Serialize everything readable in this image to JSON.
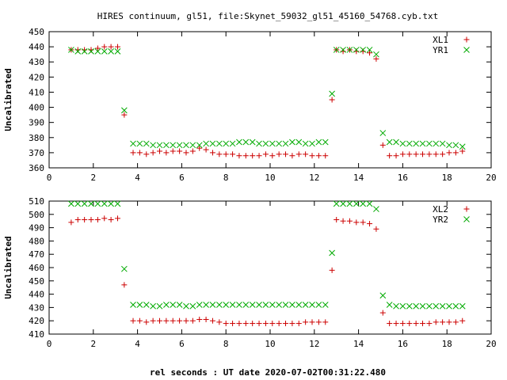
{
  "figure": {
    "title": "HIRES continuum, gl51, file:Skynet_59032_gl51_45160_54768.cyb.txt",
    "xlabel": "rel seconds : UT date 2020-07-02T00:31:22.480"
  },
  "chart_data": [
    {
      "type": "scatter",
      "ylabel": "Uncalibrated",
      "xlim": [
        0,
        20
      ],
      "ylim": [
        360,
        450
      ],
      "xticks": [
        "0",
        "2",
        "4",
        "6",
        "8",
        "10",
        "12",
        "14",
        "16",
        "18",
        "20"
      ],
      "yticks": [
        "360",
        "370",
        "380",
        "390",
        "400",
        "410",
        "420",
        "430",
        "440",
        "450"
      ],
      "grid": false,
      "legend_position": "top-right",
      "series": [
        {
          "name": "XL1",
          "marker": "plus",
          "color": "#cc0000",
          "x": [
            1.0,
            1.3,
            1.6,
            1.9,
            2.2,
            2.5,
            2.8,
            3.1,
            3.4,
            3.8,
            4.1,
            4.4,
            4.7,
            5.0,
            5.3,
            5.6,
            5.9,
            6.2,
            6.5,
            6.8,
            7.1,
            7.4,
            7.7,
            8.0,
            8.3,
            8.6,
            8.9,
            9.2,
            9.5,
            9.8,
            10.1,
            10.4,
            10.7,
            11.0,
            11.3,
            11.6,
            11.9,
            12.2,
            12.5,
            12.8,
            13.0,
            13.3,
            13.6,
            13.9,
            14.2,
            14.5,
            14.8,
            15.1,
            15.4,
            15.7,
            16.0,
            16.3,
            16.6,
            16.9,
            17.2,
            17.5,
            17.8,
            18.1,
            18.4,
            18.7
          ],
          "y": [
            438,
            438,
            438,
            438,
            439,
            440,
            440,
            440,
            395,
            370,
            370,
            369,
            370,
            371,
            370,
            371,
            371,
            370,
            371,
            373,
            372,
            370,
            369,
            369,
            369,
            368,
            368,
            368,
            368,
            369,
            368,
            369,
            369,
            368,
            369,
            369,
            368,
            368,
            368,
            405,
            438,
            437,
            438,
            437,
            437,
            436,
            432,
            375,
            368,
            368,
            369,
            369,
            369,
            369,
            369,
            369,
            369,
            370,
            370,
            371
          ]
        },
        {
          "name": "YR1",
          "marker": "cross",
          "color": "#00aa00",
          "x": [
            1.0,
            1.3,
            1.6,
            1.9,
            2.2,
            2.5,
            2.8,
            3.1,
            3.4,
            3.8,
            4.1,
            4.4,
            4.7,
            5.0,
            5.3,
            5.6,
            5.9,
            6.2,
            6.5,
            6.8,
            7.1,
            7.4,
            7.7,
            8.0,
            8.3,
            8.6,
            8.9,
            9.2,
            9.5,
            9.8,
            10.1,
            10.4,
            10.7,
            11.0,
            11.3,
            11.6,
            11.9,
            12.2,
            12.5,
            12.8,
            13.0,
            13.3,
            13.6,
            13.9,
            14.2,
            14.5,
            14.8,
            15.1,
            15.4,
            15.7,
            16.0,
            16.3,
            16.6,
            16.9,
            17.2,
            17.5,
            17.8,
            18.1,
            18.4,
            18.7
          ],
          "y": [
            438,
            437,
            437,
            437,
            437,
            437,
            437,
            437,
            398,
            376,
            376,
            376,
            375,
            375,
            375,
            375,
            375,
            375,
            375,
            375,
            376,
            376,
            376,
            376,
            376,
            377,
            377,
            377,
            376,
            376,
            376,
            376,
            376,
            377,
            377,
            376,
            376,
            377,
            377,
            409,
            438,
            438,
            438,
            438,
            438,
            438,
            435,
            383,
            377,
            377,
            376,
            376,
            376,
            376,
            376,
            376,
            376,
            375,
            375,
            374
          ]
        }
      ]
    },
    {
      "type": "scatter",
      "ylabel": "Uncalibrated",
      "xlim": [
        0,
        20
      ],
      "ylim": [
        410,
        510
      ],
      "xticks": [
        "0",
        "2",
        "4",
        "6",
        "8",
        "10",
        "12",
        "14",
        "16",
        "18",
        "20"
      ],
      "yticks": [
        "410",
        "420",
        "430",
        "440",
        "450",
        "460",
        "470",
        "480",
        "490",
        "500",
        "510"
      ],
      "grid": false,
      "legend_position": "top-right",
      "series": [
        {
          "name": "XL2",
          "marker": "plus",
          "color": "#cc0000",
          "x": [
            1.0,
            1.3,
            1.6,
            1.9,
            2.2,
            2.5,
            2.8,
            3.1,
            3.4,
            3.8,
            4.1,
            4.4,
            4.7,
            5.0,
            5.3,
            5.6,
            5.9,
            6.2,
            6.5,
            6.8,
            7.1,
            7.4,
            7.7,
            8.0,
            8.3,
            8.6,
            8.9,
            9.2,
            9.5,
            9.8,
            10.1,
            10.4,
            10.7,
            11.0,
            11.3,
            11.6,
            11.9,
            12.2,
            12.5,
            12.8,
            13.0,
            13.3,
            13.6,
            13.9,
            14.2,
            14.5,
            14.8,
            15.1,
            15.4,
            15.7,
            16.0,
            16.3,
            16.6,
            16.9,
            17.2,
            17.5,
            17.8,
            18.1,
            18.4,
            18.7
          ],
          "y": [
            494,
            496,
            496,
            496,
            496,
            497,
            496,
            497,
            447,
            420,
            420,
            419,
            420,
            420,
            420,
            420,
            420,
            420,
            420,
            421,
            421,
            420,
            419,
            418,
            418,
            418,
            418,
            418,
            418,
            418,
            418,
            418,
            418,
            418,
            418,
            419,
            419,
            419,
            419,
            458,
            496,
            495,
            495,
            494,
            494,
            493,
            489,
            426,
            418,
            418,
            418,
            418,
            418,
            418,
            418,
            419,
            419,
            419,
            419,
            420
          ]
        },
        {
          "name": "YR2",
          "marker": "cross",
          "color": "#00aa00",
          "x": [
            1.0,
            1.3,
            1.6,
            1.9,
            2.2,
            2.5,
            2.8,
            3.1,
            3.4,
            3.8,
            4.1,
            4.4,
            4.7,
            5.0,
            5.3,
            5.6,
            5.9,
            6.2,
            6.5,
            6.8,
            7.1,
            7.4,
            7.7,
            8.0,
            8.3,
            8.6,
            8.9,
            9.2,
            9.5,
            9.8,
            10.1,
            10.4,
            10.7,
            11.0,
            11.3,
            11.6,
            11.9,
            12.2,
            12.5,
            12.8,
            13.0,
            13.3,
            13.6,
            13.9,
            14.2,
            14.5,
            14.8,
            15.1,
            15.4,
            15.7,
            16.0,
            16.3,
            16.6,
            16.9,
            17.2,
            17.5,
            17.8,
            18.1,
            18.4,
            18.7
          ],
          "y": [
            508,
            508,
            508,
            508,
            508,
            508,
            508,
            508,
            459,
            432,
            432,
            432,
            431,
            431,
            432,
            432,
            432,
            431,
            431,
            432,
            432,
            432,
            432,
            432,
            432,
            432,
            432,
            432,
            432,
            432,
            432,
            432,
            432,
            432,
            432,
            432,
            432,
            432,
            432,
            471,
            508,
            508,
            508,
            508,
            508,
            508,
            504,
            439,
            432,
            431,
            431,
            431,
            431,
            431,
            431,
            431,
            431,
            431,
            431,
            431
          ]
        }
      ]
    }
  ]
}
